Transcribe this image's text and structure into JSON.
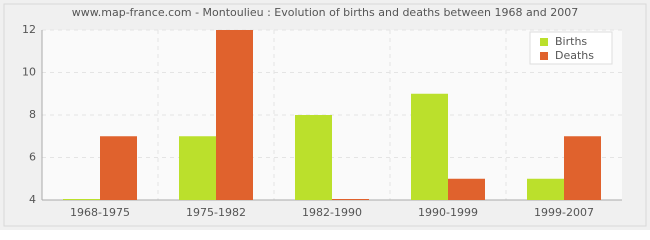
{
  "chart_data": {
    "type": "bar",
    "title": "www.map-france.com - Montoulieu : Evolution of births and deaths between 1968 and 2007",
    "categories": [
      "1968-1975",
      "1975-1982",
      "1982-1990",
      "1990-1999",
      "1999-2007"
    ],
    "series": [
      {
        "name": "Births",
        "color": "#bbe02c",
        "values": [
          4,
          7,
          8,
          9,
          5
        ]
      },
      {
        "name": "Deaths",
        "color": "#e0622d",
        "values": [
          7,
          12,
          4,
          5,
          7
        ]
      }
    ],
    "ylim": [
      4,
      12
    ],
    "yticks": [
      4,
      6,
      8,
      10,
      12
    ],
    "grid": true,
    "legend": "top-right"
  }
}
